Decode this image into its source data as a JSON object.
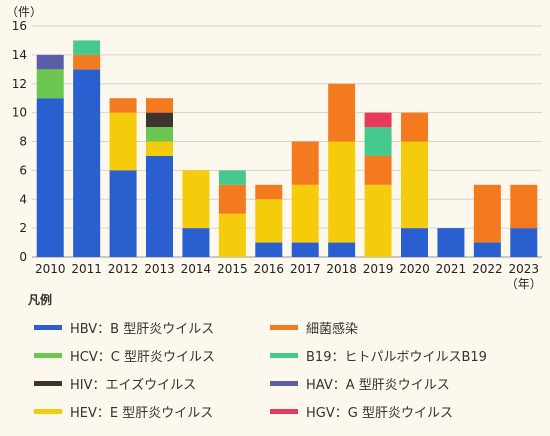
{
  "chart_data": {
    "type": "bar",
    "stacked": true,
    "y_unit": "（件）",
    "x_unit": "（年）",
    "ylim": [
      0,
      16
    ],
    "yticks": [
      0,
      2,
      4,
      6,
      8,
      10,
      12,
      14,
      16
    ],
    "grid": "horizontal",
    "categories": [
      "2010",
      "2011",
      "2012",
      "2013",
      "2014",
      "2015",
      "2016",
      "2017",
      "2018",
      "2019",
      "2020",
      "2021",
      "2022",
      "2023"
    ],
    "series": [
      {
        "key": "hbv",
        "name": "HBV：B 型肝炎ウイルス",
        "color": "#2a5fd0",
        "values": [
          11,
          13,
          6,
          7,
          2,
          0,
          1,
          1,
          1,
          0,
          2,
          2,
          1,
          2
        ]
      },
      {
        "key": "hev",
        "name": "HEV：E 型肝炎ウイルス",
        "color": "#f5cc0c",
        "values": [
          0,
          0,
          4,
          1,
          4,
          3,
          3,
          4,
          7,
          5,
          6,
          0,
          0,
          0
        ]
      },
      {
        "key": "hcv",
        "name": "HCV：C 型肝炎ウイルス",
        "color": "#6cc64f",
        "values": [
          2,
          0,
          0,
          1,
          0,
          0,
          0,
          0,
          0,
          0,
          0,
          0,
          0,
          0
        ]
      },
      {
        "key": "hiv",
        "name": "HIV：エイズウイルス",
        "color": "#3f3330",
        "values": [
          0,
          0,
          0,
          1,
          0,
          0,
          0,
          0,
          0,
          0,
          0,
          0,
          0,
          0
        ]
      },
      {
        "key": "bact",
        "name": "細菌感染",
        "color": "#f47a20",
        "values": [
          0,
          1,
          1,
          1,
          0,
          2,
          1,
          3,
          4,
          2,
          2,
          0,
          4,
          3
        ]
      },
      {
        "key": "b19",
        "name": "B19：ヒトパルボウイルスB19",
        "color": "#45c98c",
        "values": [
          0,
          1,
          0,
          0,
          0,
          1,
          0,
          0,
          0,
          2,
          0,
          0,
          0,
          0
        ]
      },
      {
        "key": "hav",
        "name": "HAV：A 型肝炎ウイルス",
        "color": "#5a5ea8",
        "values": [
          1,
          0,
          0,
          0,
          0,
          0,
          0,
          0,
          0,
          0,
          0,
          0,
          0,
          0
        ]
      },
      {
        "key": "hgv",
        "name": "HGV：G 型肝炎ウイルス",
        "color": "#e8395a",
        "values": [
          0,
          0,
          0,
          0,
          0,
          0,
          0,
          0,
          0,
          1,
          0,
          0,
          0,
          0
        ]
      }
    ],
    "legend_title": "凡例",
    "legend_order": [
      "hbv",
      "bact",
      "hcv",
      "b19",
      "hiv",
      "hav",
      "hev",
      "hgv"
    ],
    "legend_placement": "bottom"
  }
}
